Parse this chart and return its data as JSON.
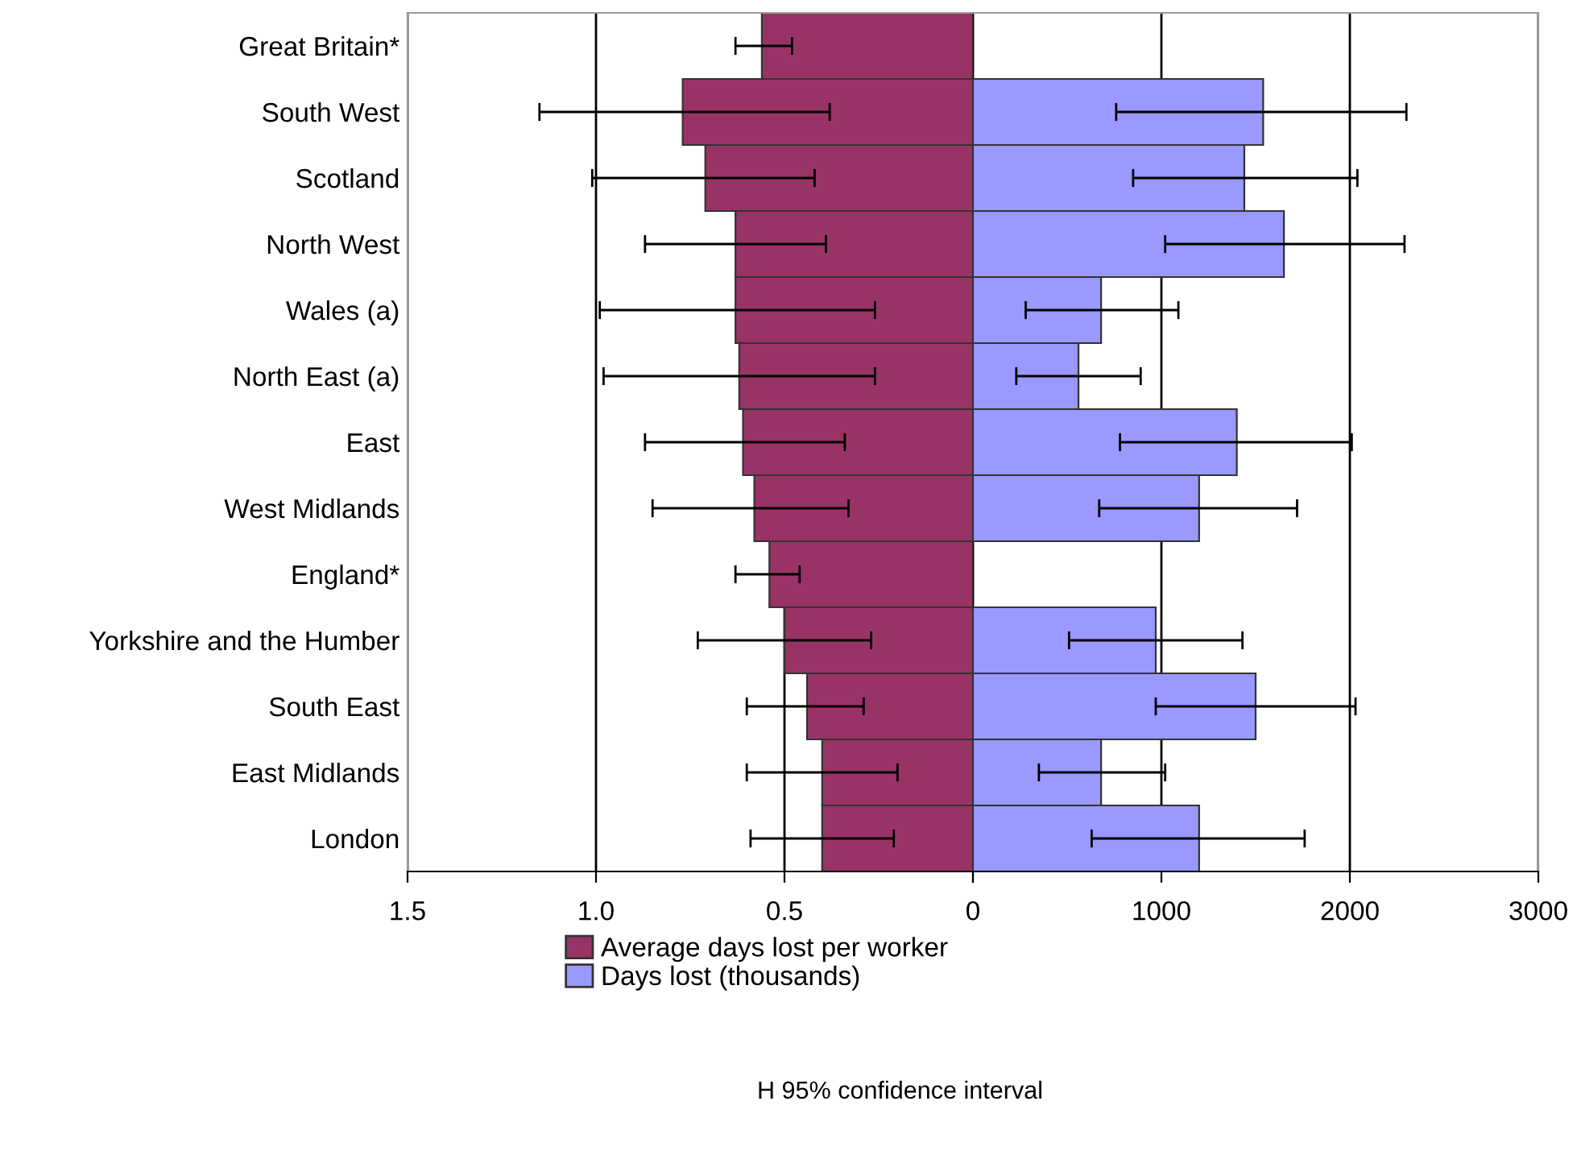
{
  "chart_data": [
    {
      "type": "bar",
      "orientation": "horizontal",
      "categories": [
        "Great Britain*",
        "South West",
        "Scotland",
        "North West",
        "Wales (a)",
        "North East (a)",
        "East",
        "West Midlands",
        "England*",
        "Yorkshire and the Humber",
        "South East",
        "East Midlands",
        "London"
      ],
      "series": [
        {
          "name": "Average days lost per worker",
          "color": "#993366",
          "values": [
            0.56,
            0.77,
            0.71,
            0.63,
            0.63,
            0.62,
            0.61,
            0.58,
            0.54,
            0.5,
            0.44,
            0.4,
            0.4
          ],
          "errors": [
            [
              0.48,
              0.63
            ],
            [
              0.38,
              1.15
            ],
            [
              0.42,
              1.01
            ],
            [
              0.39,
              0.87
            ],
            [
              0.26,
              0.99
            ],
            [
              0.26,
              0.98
            ],
            [
              0.34,
              0.87
            ],
            [
              0.33,
              0.85
            ],
            [
              0.46,
              0.63
            ],
            [
              0.27,
              0.73
            ],
            [
              0.29,
              0.6
            ],
            [
              0.2,
              0.6
            ],
            [
              0.21,
              0.59
            ]
          ]
        }
      ],
      "xlim": [
        1.5,
        0
      ],
      "xticks": [
        1.5,
        {
          "value": 1,
          "label": "1.0"
        },
        0.5,
        0
      ],
      "grid": "x",
      "legend": "bottom"
    },
    {
      "type": "bar",
      "orientation": "horizontal",
      "categories": [
        null,
        null,
        null,
        null,
        null,
        null,
        null,
        null,
        null,
        null,
        null,
        null,
        null
      ],
      "series": [
        {
          "name": "Days lost (thousands)",
          "color": "#9999ff",
          "values": [
            null,
            1540,
            1440,
            1650,
            680,
            560,
            1400,
            1200,
            null,
            970,
            1500,
            680,
            1200
          ],
          "errors": [
            null,
            [
              760,
              2300
            ],
            [
              850,
              2040
            ],
            [
              1020,
              2290
            ],
            [
              280,
              1090
            ],
            [
              230,
              890
            ],
            [
              780,
              2010
            ],
            [
              670,
              1720
            ],
            null,
            [
              510,
              1430
            ],
            [
              970,
              2030
            ],
            [
              350,
              1020
            ],
            [
              630,
              1760
            ]
          ]
        }
      ],
      "xlim": [
        0,
        3000
      ],
      "xticks": [
        {
          "value": 0,
          "label": null
        },
        1000,
        2000,
        3000
      ],
      "grid": "x",
      "legend": "bottom",
      "tick_labels": "x",
      "annotations": [
        "H 95% confidence interval"
      ]
    }
  ]
}
